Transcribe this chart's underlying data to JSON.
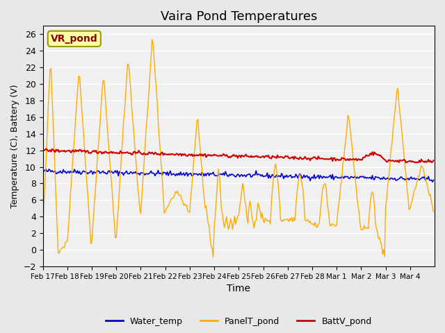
{
  "title": "Vaira Pond Temperatures",
  "xlabel": "Time",
  "ylabel": "Temperature (C), Battery (V)",
  "ylim": [
    -2,
    27
  ],
  "yticks": [
    -2,
    0,
    2,
    4,
    6,
    8,
    10,
    12,
    14,
    16,
    18,
    20,
    22,
    24,
    26
  ],
  "annotation_text": "VR_pond",
  "water_temp_color": "#0000cc",
  "panel_temp_color": "#ffaa00",
  "batt_color": "#cc0000",
  "background_color": "#e8e8e8",
  "plot_bg_color": "#f0f0f0",
  "xtick_labels": [
    "Feb 17",
    "Feb 18",
    "Feb 19",
    "Feb 20",
    "Feb 21",
    "Feb 22",
    "Feb 23",
    "Feb 24",
    "Feb 25",
    "Feb 26",
    "Feb 27",
    "Feb 28",
    "Mar 1",
    "Mar 2",
    "Mar 3",
    "Mar 4"
  ],
  "legend_labels": [
    "Water_temp",
    "PanelT_pond",
    "BattV_pond"
  ]
}
